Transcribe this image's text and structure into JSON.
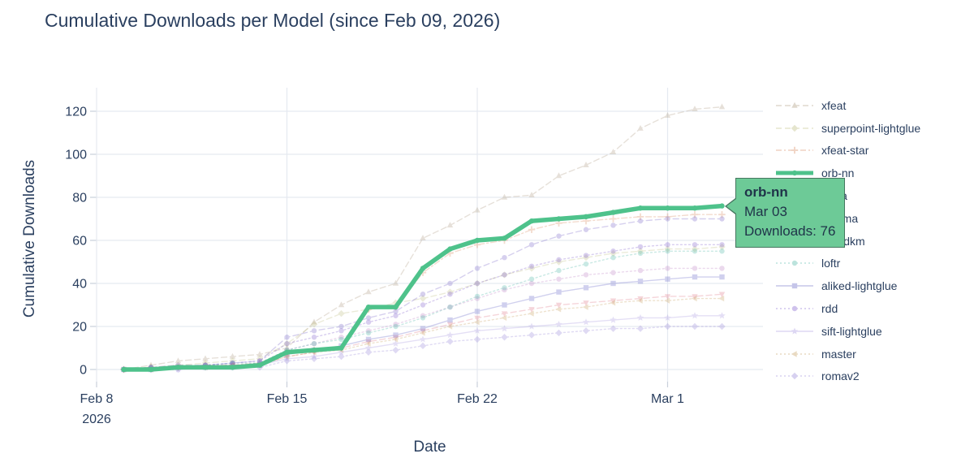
{
  "title": {
    "text": "Cumulative Downloads per Model (since Feb 09, 2026)",
    "color": "#2a3f5f"
  },
  "axes": {
    "x": {
      "title": "Date",
      "ticks": [
        {
          "label": "Feb 8",
          "sublabel": "2026",
          "day_index": 0
        },
        {
          "label": "Feb 15",
          "day_index": 7
        },
        {
          "label": "Feb 22",
          "day_index": 14
        },
        {
          "label": "Mar 1",
          "day_index": 21
        }
      ]
    },
    "y": {
      "title": "Cumulative Downloads",
      "ticks": [
        0,
        20,
        40,
        60,
        80,
        100,
        120
      ]
    }
  },
  "tooltip": {
    "series": "orb-nn",
    "date": "Mar 03",
    "downloads": "Downloads: 76",
    "bg_color": "#6dca97",
    "border_color": "#46775f",
    "text_color": "#1f3349"
  },
  "colors": {
    "text": "#2a3f5f",
    "grid": "#e5e9f0",
    "tick": "#c9d0da",
    "highlight": "#4ec28b"
  },
  "chart_data": {
    "type": "line",
    "title": "Cumulative Downloads per Model (since Feb 09, 2026)",
    "xlabel": "Date",
    "ylabel": "Cumulative Downloads",
    "x": [
      "Feb 09",
      "Feb 10",
      "Feb 11",
      "Feb 12",
      "Feb 13",
      "Feb 14",
      "Feb 15",
      "Feb 16",
      "Feb 17",
      "Feb 18",
      "Feb 19",
      "Feb 20",
      "Feb 21",
      "Feb 22",
      "Feb 23",
      "Feb 24",
      "Feb 25",
      "Feb 26",
      "Feb 27",
      "Feb 28",
      "Mar 01",
      "Mar 02",
      "Mar 03"
    ],
    "x_start_day_index": 1,
    "ylim": [
      0,
      130
    ],
    "grid": true,
    "legend_position": "right",
    "series": [
      {
        "name": "xfeat",
        "color": "#a89478",
        "dash": "dash",
        "marker": "triangle-up",
        "width": 1.4,
        "opacity": 0.28,
        "values": [
          0,
          2,
          4,
          5,
          6,
          7,
          10,
          22,
          30,
          36,
          40,
          61,
          67,
          74,
          80,
          81,
          90,
          95,
          101,
          112,
          118,
          121,
          122
        ]
      },
      {
        "name": "superpoint-lightglue",
        "color": "#b8b878",
        "dash": "dash",
        "marker": "diamond",
        "width": 1.4,
        "opacity": 0.28,
        "values": [
          0,
          1,
          2,
          3,
          4,
          5,
          12,
          21,
          26,
          28,
          31,
          33,
          36,
          40,
          44,
          47,
          50,
          52,
          54,
          55,
          56,
          56,
          57
        ]
      },
      {
        "name": "xfeat-star",
        "color": "#d88c60",
        "dash": "dashdot",
        "marker": "cross",
        "width": 1.4,
        "opacity": 0.3,
        "values": [
          0,
          1,
          1,
          2,
          2,
          3,
          8,
          9,
          10,
          28,
          29,
          45,
          54,
          58,
          60,
          65,
          68,
          69,
          70,
          71,
          71,
          72,
          72
        ]
      },
      {
        "name": "orb-nn",
        "color": "#4ec28b",
        "dash": "solid",
        "marker": "circle",
        "width": 5.5,
        "opacity": 1,
        "highlighted": true,
        "values": [
          0,
          0,
          1,
          1,
          1,
          2,
          8,
          9,
          10,
          29,
          29,
          47,
          56,
          60,
          61,
          69,
          70,
          71,
          73,
          75,
          75,
          75,
          76
        ]
      },
      {
        "name": "roma",
        "color": "#7a68c8",
        "dash": "dash",
        "marker": "circle",
        "width": 1.4,
        "opacity": 0.3,
        "values": [
          0,
          1,
          2,
          2,
          3,
          4,
          15,
          18,
          20,
          24,
          27,
          35,
          40,
          47,
          52,
          58,
          62,
          65,
          67,
          69,
          70,
          70,
          70
        ]
      },
      {
        "name": "minima",
        "color": "#b878c0",
        "dash": "dot",
        "marker": "circle",
        "width": 1.4,
        "opacity": 0.28,
        "values": [
          0,
          0,
          1,
          2,
          2,
          3,
          9,
          12,
          15,
          18,
          21,
          25,
          29,
          33,
          37,
          40,
          42,
          44,
          45,
          46,
          47,
          47,
          47
        ]
      },
      {
        "name": "gim-dkm",
        "color": "#e07888",
        "dash": "dash",
        "marker": "triangle-down",
        "width": 1.4,
        "opacity": 0.3,
        "values": [
          0,
          0,
          1,
          1,
          2,
          2,
          6,
          8,
          10,
          13,
          15,
          18,
          21,
          24,
          26,
          28,
          30,
          31,
          32,
          33,
          34,
          34,
          35
        ]
      },
      {
        "name": "loftr",
        "color": "#50b8a8",
        "dash": "dot",
        "marker": "circle",
        "width": 1.4,
        "opacity": 0.3,
        "values": [
          0,
          1,
          1,
          2,
          3,
          3,
          9,
          12,
          14,
          17,
          20,
          24,
          29,
          34,
          38,
          42,
          46,
          49,
          52,
          54,
          55,
          55,
          55
        ]
      },
      {
        "name": "aliked-lightglue",
        "color": "#6868c8",
        "dash": "solid",
        "marker": "square",
        "width": 1.4,
        "opacity": 0.3,
        "values": [
          0,
          0,
          1,
          1,
          2,
          2,
          7,
          9,
          11,
          14,
          16,
          19,
          23,
          27,
          30,
          33,
          36,
          38,
          40,
          41,
          42,
          43,
          43
        ]
      },
      {
        "name": "rdd",
        "color": "#8868d0",
        "dash": "dot",
        "marker": "circle",
        "width": 1.4,
        "opacity": 0.32,
        "values": [
          0,
          1,
          1,
          2,
          3,
          4,
          12,
          15,
          18,
          22,
          25,
          30,
          35,
          40,
          44,
          48,
          51,
          53,
          55,
          57,
          58,
          58,
          58
        ]
      },
      {
        "name": "sift-lightglue",
        "color": "#a898e0",
        "dash": "solid",
        "marker": "star",
        "width": 1.4,
        "opacity": 0.3,
        "values": [
          0,
          0,
          0,
          1,
          1,
          2,
          5,
          6,
          8,
          10,
          12,
          14,
          16,
          18,
          19,
          20,
          21,
          22,
          23,
          24,
          24,
          25,
          25
        ]
      },
      {
        "name": "master",
        "color": "#c8a060",
        "dash": "dot",
        "marker": "triangle-left",
        "width": 1.4,
        "opacity": 0.3,
        "values": [
          0,
          0,
          1,
          1,
          2,
          2,
          6,
          8,
          9,
          12,
          14,
          17,
          20,
          22,
          24,
          26,
          28,
          29,
          31,
          32,
          32,
          33,
          33
        ]
      },
      {
        "name": "romav2",
        "color": "#9888d8",
        "dash": "dot",
        "marker": "diamond",
        "width": 1.4,
        "opacity": 0.3,
        "values": [
          0,
          0,
          0,
          1,
          1,
          1,
          4,
          5,
          6,
          8,
          9,
          11,
          13,
          14,
          15,
          16,
          17,
          18,
          19,
          19,
          20,
          20,
          20
        ]
      }
    ]
  }
}
